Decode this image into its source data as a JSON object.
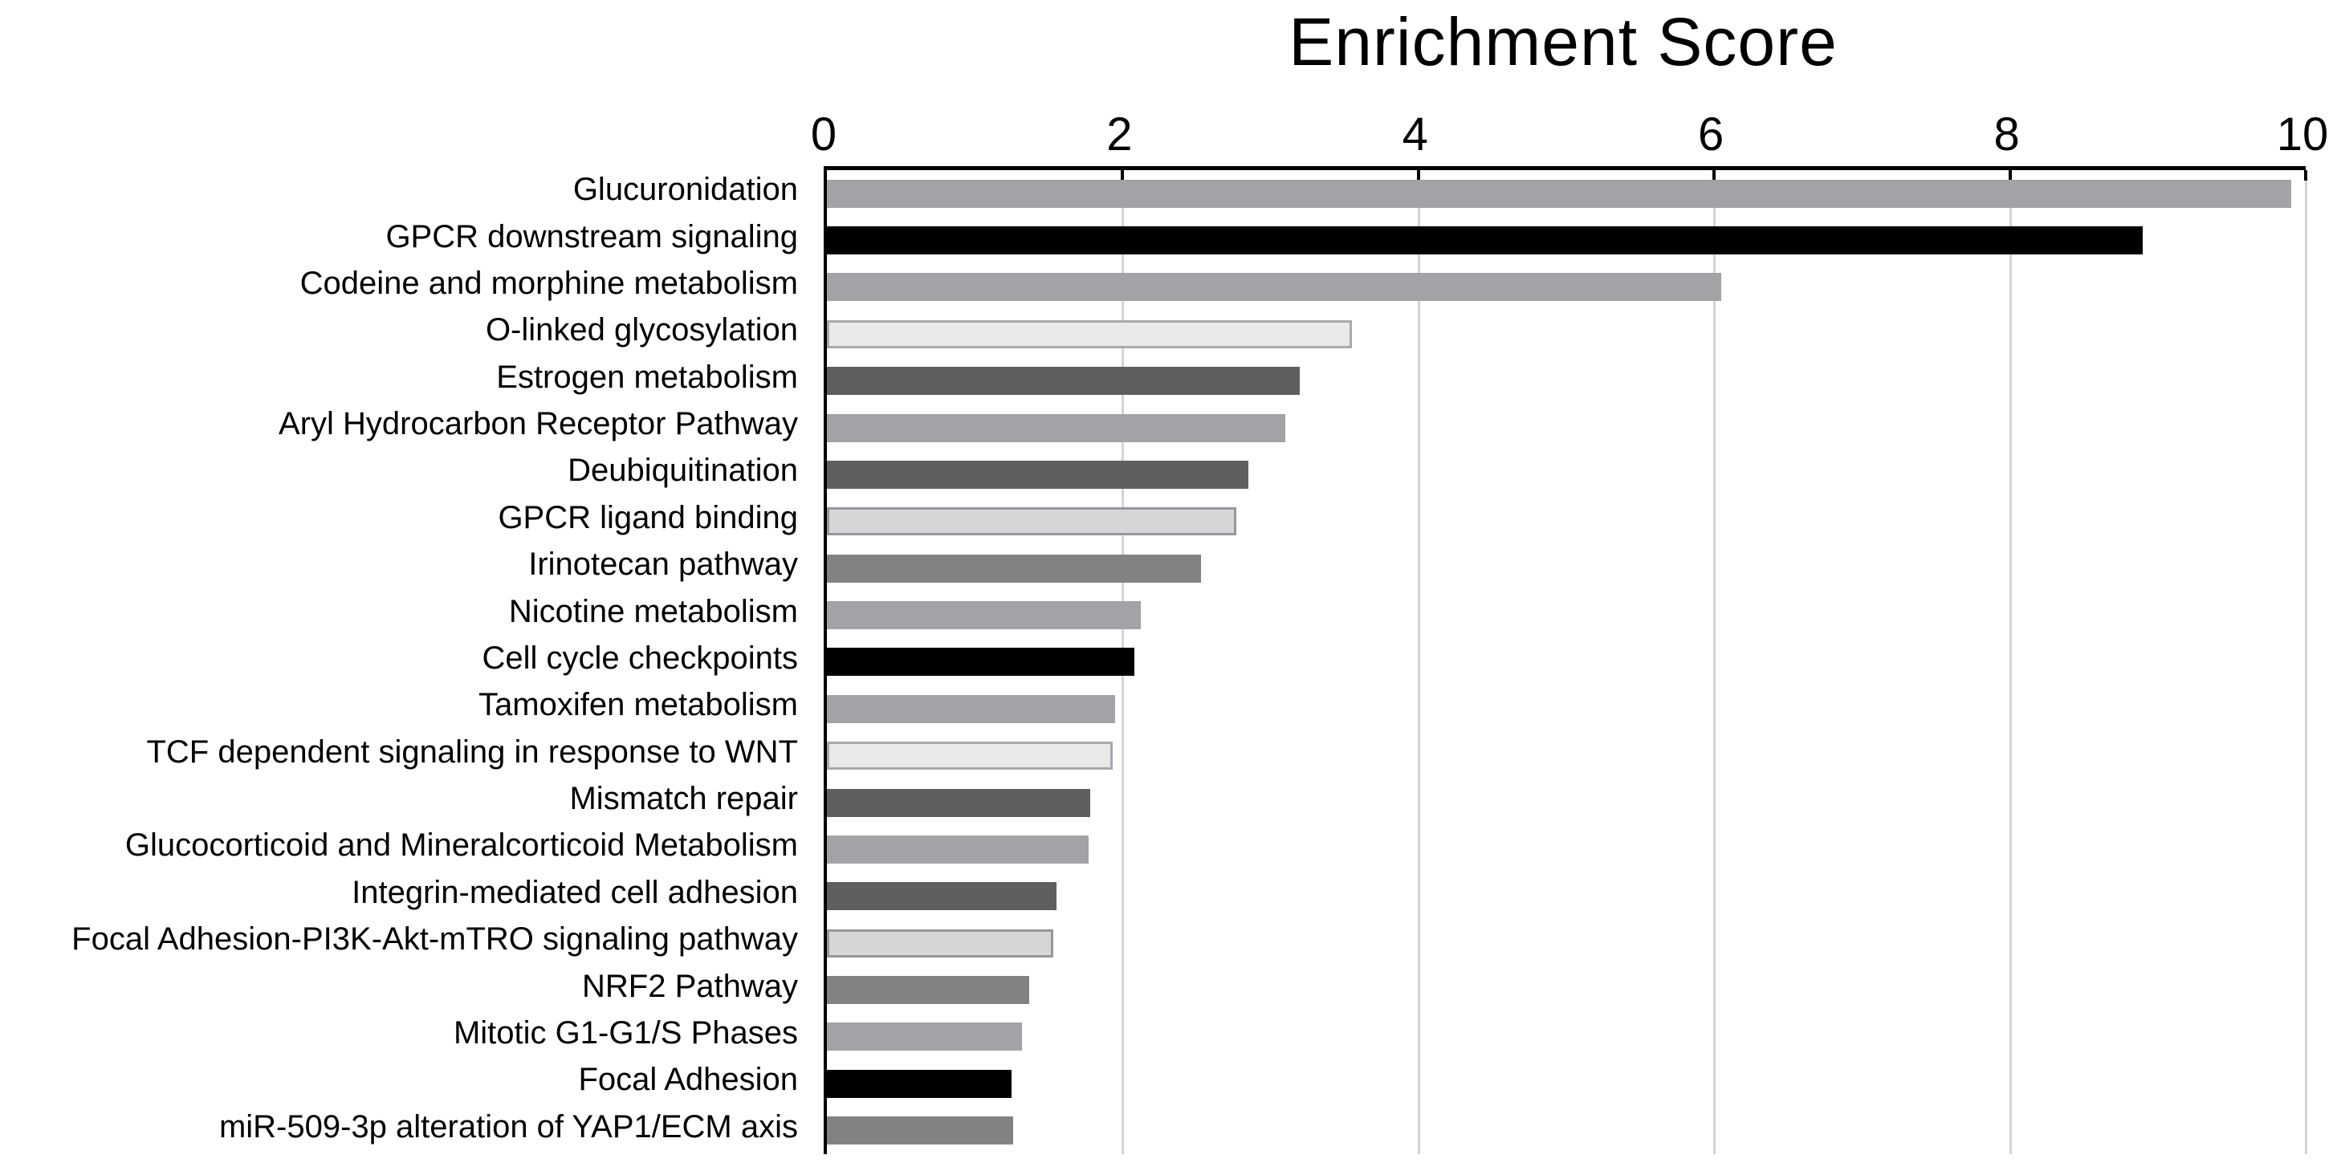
{
  "chart_data": {
    "type": "bar",
    "orientation": "horizontal",
    "title": "Enrichment Score",
    "xlabel": "",
    "ylabel": "",
    "xlim": [
      0,
      10
    ],
    "x_ticks": [
      0,
      2,
      4,
      6,
      8,
      10
    ],
    "grid": "vertical",
    "legend": "none",
    "gridline_color": "#d4d4d4",
    "axis_color": "#000000",
    "categories": [
      "Glucuronidation",
      "GPCR downstream signaling",
      "Codeine and morphine metabolism",
      "O-linked glycosylation",
      "Estrogen metabolism",
      "Aryl Hydrocarbon Receptor Pathway",
      "Deubiquitination",
      "GPCR ligand binding",
      "Irinotecan pathway",
      "Nicotine metabolism",
      "Cell cycle checkpoints",
      "Tamoxifen metabolism",
      "TCF dependent signaling in response to WNT",
      "Mismatch repair",
      "Glucocorticoid and Mineralcorticoid Metabolism",
      "Integrin-mediated cell adhesion",
      "Focal Adhesion-PI3K-Akt-mTRO signaling pathway",
      "NRF2 Pathway",
      "Mitotic G1-G1/S Phases",
      "Focal Adhesion",
      "miR-509-3p alteration of YAP1/ECM axis"
    ],
    "values": [
      9.9,
      8.9,
      6.05,
      3.55,
      3.2,
      3.1,
      2.85,
      2.77,
      2.53,
      2.12,
      2.08,
      1.95,
      1.93,
      1.78,
      1.77,
      1.55,
      1.53,
      1.37,
      1.32,
      1.25,
      1.26
    ],
    "bars": [
      {
        "label": "Glucuronidation",
        "value": 9.9,
        "fill": "#a2a2a7",
        "border": null
      },
      {
        "label": "GPCR downstream signaling",
        "value": 8.9,
        "fill": "#000000",
        "border": null
      },
      {
        "label": "Codeine and morphine metabolism",
        "value": 6.05,
        "fill": "#a2a2a7",
        "border": null
      },
      {
        "label": "O-linked glycosylation",
        "value": 3.55,
        "fill": "#e9e9e9",
        "border": "#a8a8ae"
      },
      {
        "label": "Estrogen metabolism",
        "value": 3.2,
        "fill": "#5f5f5f",
        "border": null
      },
      {
        "label": "Aryl Hydrocarbon Receptor Pathway",
        "value": 3.1,
        "fill": "#a2a2a7",
        "border": null
      },
      {
        "label": "Deubiquitination",
        "value": 2.85,
        "fill": "#5f5f5f",
        "border": null
      },
      {
        "label": "GPCR ligand binding",
        "value": 2.77,
        "fill": "#d6d6d8",
        "border": "#96969c"
      },
      {
        "label": "Irinotecan pathway",
        "value": 2.53,
        "fill": "#828282",
        "border": null
      },
      {
        "label": "Nicotine metabolism",
        "value": 2.12,
        "fill": "#a2a2a7",
        "border": null
      },
      {
        "label": "Cell cycle checkpoints",
        "value": 2.08,
        "fill": "#000000",
        "border": null
      },
      {
        "label": "Tamoxifen metabolism",
        "value": 1.95,
        "fill": "#a2a2a7",
        "border": null
      },
      {
        "label": "TCF dependent signaling in response to WNT",
        "value": 1.93,
        "fill": "#e9e9e9",
        "border": "#a8a8ae"
      },
      {
        "label": "Mismatch repair",
        "value": 1.78,
        "fill": "#5f5f5f",
        "border": null
      },
      {
        "label": "Glucocorticoid and Mineralcorticoid Metabolism",
        "value": 1.77,
        "fill": "#a2a2a7",
        "border": null
      },
      {
        "label": "Integrin-mediated cell adhesion",
        "value": 1.55,
        "fill": "#5f5f5f",
        "border": null
      },
      {
        "label": "Focal Adhesion-PI3K-Akt-mTRO signaling pathway",
        "value": 1.53,
        "fill": "#d6d6d8",
        "border": "#96969c"
      },
      {
        "label": "NRF2 Pathway",
        "value": 1.37,
        "fill": "#828282",
        "border": null
      },
      {
        "label": "Mitotic G1-G1/S Phases",
        "value": 1.32,
        "fill": "#a2a2a7",
        "border": null
      },
      {
        "label": "Focal Adhesion",
        "value": 1.25,
        "fill": "#000000",
        "border": null
      },
      {
        "label": "miR-509-3p alteration of YAP1/ECM axis",
        "value": 1.26,
        "fill": "#828282",
        "border": null
      }
    ]
  }
}
